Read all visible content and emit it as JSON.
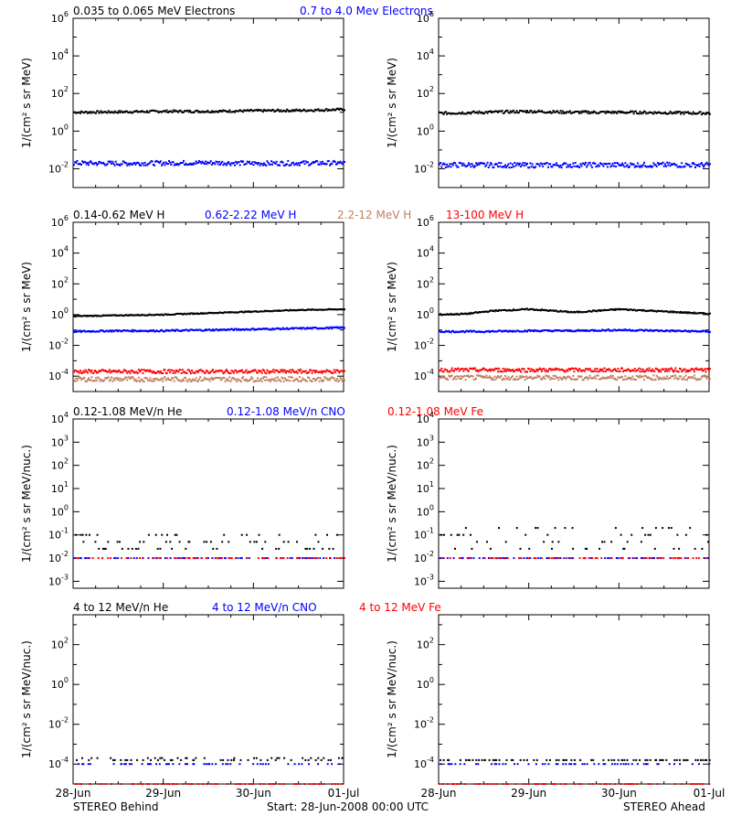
{
  "footer": {
    "left": "STEREO Behind",
    "center": "Start: 28-Jun-2008 00:00 UTC",
    "right": "STEREO Ahead"
  },
  "x_ticks": [
    "28-Jun",
    "29-Jun",
    "30-Jun",
    "01-Jul"
  ],
  "colors": {
    "black": "#000000",
    "blue": "#0000ff",
    "brown": "#c08060",
    "red": "#ff0000"
  },
  "chart_data": [
    {
      "type": "scatter",
      "row": 0,
      "ylabel": "1/(cm² s sr MeV)",
      "yscale": "log",
      "ylim_exp": [
        -3,
        6
      ],
      "y_tick_exponents": [
        -2,
        0,
        2,
        4,
        6
      ],
      "legend": [
        {
          "name": "0.035 to 0.065 MeV Electrons",
          "color": "#000000"
        },
        {
          "name": "0.7 to 4.0 Mev Electrons",
          "color": "#0000ff"
        }
      ],
      "panels": {
        "behind": [
          {
            "name": "0.035 to 0.065 MeV Electrons",
            "color": "#000000",
            "x": [
              0,
              0.5,
              1,
              1.5,
              2,
              2.5,
              3
            ],
            "y_exp": [
              1.0,
              1.02,
              1.05,
              1.05,
              1.08,
              1.1,
              1.15
            ],
            "scatter": 0.06
          },
          {
            "name": "0.7 to 4.0 Mev Electrons",
            "color": "#0000ff",
            "x": [
              0,
              0.5,
              1,
              1.5,
              2,
              2.5,
              3
            ],
            "y_exp": [
              -1.7,
              -1.72,
              -1.7,
              -1.68,
              -1.72,
              -1.7,
              -1.7
            ],
            "scatter": 0.12
          }
        ],
        "ahead": [
          {
            "name": "0.035 to 0.065 MeV Electrons",
            "color": "#000000",
            "x": [
              0,
              0.5,
              1,
              1.5,
              2,
              2.5,
              3
            ],
            "y_exp": [
              0.95,
              1.0,
              1.05,
              1.0,
              1.0,
              0.98,
              0.95
            ],
            "scatter": 0.07
          },
          {
            "name": "0.7 to 4.0 Mev Electrons",
            "color": "#0000ff",
            "x": [
              0,
              0.5,
              1,
              1.5,
              2,
              2.5,
              3
            ],
            "y_exp": [
              -1.8,
              -1.8,
              -1.82,
              -1.8,
              -1.8,
              -1.8,
              -1.8
            ],
            "scatter": 0.13
          }
        ]
      }
    },
    {
      "type": "scatter",
      "row": 1,
      "ylabel": "1/(cm² s sr MeV)",
      "yscale": "log",
      "ylim_exp": [
        -5,
        6
      ],
      "y_tick_exponents": [
        -4,
        -2,
        0,
        2,
        4,
        6
      ],
      "legend": [
        {
          "name": "0.14-0.62 MeV H",
          "color": "#000000"
        },
        {
          "name": "0.62-2.22 MeV H",
          "color": "#0000ff"
        },
        {
          "name": "2.2-12 MeV H",
          "color": "#c08060"
        },
        {
          "name": "13-100 MeV H",
          "color": "#ff0000"
        }
      ],
      "panels": {
        "behind": [
          {
            "name": "0.14-0.62 MeV H",
            "color": "#000000",
            "x": [
              0,
              0.5,
              1,
              1.5,
              2,
              2.5,
              3
            ],
            "y_exp": [
              -0.1,
              -0.05,
              0.0,
              0.1,
              0.2,
              0.3,
              0.35
            ],
            "scatter": 0.03
          },
          {
            "name": "0.62-2.22 MeV H",
            "color": "#0000ff",
            "x": [
              0,
              0.5,
              1,
              1.5,
              2,
              2.5,
              3
            ],
            "y_exp": [
              -1.1,
              -1.05,
              -1.05,
              -1.0,
              -0.95,
              -0.9,
              -0.85
            ],
            "scatter": 0.05
          },
          {
            "name": "2.2-12 MeV H",
            "color": "#c08060",
            "x": [
              0,
              3
            ],
            "y_exp": [
              -4.2,
              -4.2
            ],
            "scatter": 0.15
          },
          {
            "name": "13-100 MeV H",
            "color": "#ff0000",
            "x": [
              0,
              3
            ],
            "y_exp": [
              -3.7,
              -3.7
            ],
            "scatter": 0.12
          }
        ],
        "ahead": [
          {
            "name": "0.14-0.62 MeV H",
            "color": "#000000",
            "x": [
              0,
              0.3,
              0.6,
              1.0,
              1.5,
              2.0,
              2.5,
              3
            ],
            "y_exp": [
              0.0,
              0.05,
              0.25,
              0.35,
              0.15,
              0.35,
              0.2,
              0.05
            ],
            "scatter": 0.04
          },
          {
            "name": "0.62-2.22 MeV H",
            "color": "#0000ff",
            "x": [
              0,
              0.5,
              1,
              1.5,
              2,
              2.5,
              3
            ],
            "y_exp": [
              -1.1,
              -1.1,
              -1.05,
              -1.05,
              -1.0,
              -1.05,
              -1.1
            ],
            "scatter": 0.05
          },
          {
            "name": "2.2-12 MeV H",
            "color": "#c08060",
            "x": [
              0,
              3
            ],
            "y_exp": [
              -4.1,
              -4.1
            ],
            "scatter": 0.15
          },
          {
            "name": "13-100 MeV H",
            "color": "#ff0000",
            "x": [
              0,
              3
            ],
            "y_exp": [
              -3.6,
              -3.6
            ],
            "scatter": 0.12
          }
        ]
      }
    },
    {
      "type": "scatter",
      "row": 2,
      "ylabel": "1/(cm² s sr MeV/nuc.)",
      "yscale": "log",
      "ylim_exp": [
        -3.3,
        4
      ],
      "y_tick_exponents": [
        -3,
        -2,
        -1,
        0,
        1,
        2,
        3,
        4
      ],
      "legend": [
        {
          "name": "0.12-1.08 MeV/n He",
          "color": "#000000"
        },
        {
          "name": "0.12-1.08 MeV/n CNO",
          "color": "#0000ff"
        },
        {
          "name": "0.12-1.08 MeV Fe",
          "color": "#ff0000"
        }
      ],
      "panels": {
        "behind": [
          {
            "name": "0.12-1.08 MeV/n He",
            "color": "#000000",
            "x": [
              0,
              3
            ],
            "y_exp": [
              -1.0,
              -1.0
            ],
            "levels": [
              -1.0,
              -1.3,
              -1.6
            ],
            "sparse": true
          },
          {
            "name": "0.12-1.08 MeV/n CNO",
            "color": "#0000ff",
            "x": [
              0,
              3
            ],
            "y_exp": [
              -2.0,
              -2.0
            ],
            "levels": [
              -2.0
            ],
            "sparse": true
          },
          {
            "name": "0.12-1.08 MeV Fe",
            "color": "#ff0000",
            "x": [
              0,
              3
            ],
            "y_exp": [
              -2.0,
              -2.0
            ],
            "levels": [
              -2.0
            ],
            "sparse": true
          }
        ],
        "ahead": [
          {
            "name": "0.12-1.08 MeV/n He",
            "color": "#000000",
            "x": [
              0,
              3
            ],
            "y_exp": [
              -1.0,
              -1.0
            ],
            "levels": [
              -1.0,
              -1.3,
              -0.7,
              -1.6
            ],
            "sparse": true
          },
          {
            "name": "0.12-1.08 MeV/n CNO",
            "color": "#0000ff",
            "x": [
              0,
              3
            ],
            "y_exp": [
              -2.0,
              -2.0
            ],
            "levels": [
              -2.0
            ],
            "sparse": true
          },
          {
            "name": "0.12-1.08 MeV Fe",
            "color": "#ff0000",
            "x": [
              0,
              3
            ],
            "y_exp": [
              -2.0,
              -2.0
            ],
            "levels": [
              -2.0
            ],
            "sparse": true
          }
        ]
      }
    },
    {
      "type": "scatter",
      "row": 3,
      "ylabel": "1/(cm² s sr MeV/nuc.)",
      "yscale": "log",
      "ylim_exp": [
        -5,
        3.5
      ],
      "y_tick_exponents": [
        -4,
        -2,
        0,
        2
      ],
      "legend": [
        {
          "name": "4 to 12 MeV/n He",
          "color": "#000000"
        },
        {
          "name": "4 to 12 MeV/n CNO",
          "color": "#0000ff"
        },
        {
          "name": "4 to 12 MeV Fe",
          "color": "#ff0000"
        }
      ],
      "panels": {
        "behind": [
          {
            "name": "4 to 12 MeV/n He",
            "color": "#000000",
            "x": [
              0,
              3
            ],
            "y_exp": [
              -4.0,
              -4.0
            ],
            "levels": [
              -3.8,
              -3.7
            ],
            "sparse": true
          },
          {
            "name": "4 to 12 MeV/n CNO",
            "color": "#0000ff",
            "x": [
              0,
              3
            ],
            "y_exp": [
              -4.0,
              -4.0
            ],
            "levels": [
              -4.0
            ],
            "sparse": true
          },
          {
            "name": "4 to 12 MeV Fe",
            "color": "#ff0000",
            "x": [
              0,
              3
            ],
            "y_exp": [
              -5.0,
              -5.0
            ],
            "levels": [
              -5.0
            ],
            "sparse": true
          }
        ],
        "ahead": [
          {
            "name": "4 to 12 MeV/n He",
            "color": "#000000",
            "x": [
              0,
              3
            ],
            "y_exp": [
              -4.0,
              -4.0
            ],
            "levels": [
              -3.8
            ],
            "sparse": true
          },
          {
            "name": "4 to 12 MeV/n CNO",
            "color": "#0000ff",
            "x": [
              0,
              3
            ],
            "y_exp": [
              -4.0,
              -4.0
            ],
            "levels": [
              -4.0
            ],
            "sparse": true
          },
          {
            "name": "4 to 12 MeV Fe",
            "color": "#ff0000",
            "x": [
              0,
              3
            ],
            "y_exp": [
              -5.0,
              -5.0
            ],
            "levels": [
              -5.0
            ],
            "sparse": true
          }
        ]
      }
    }
  ]
}
